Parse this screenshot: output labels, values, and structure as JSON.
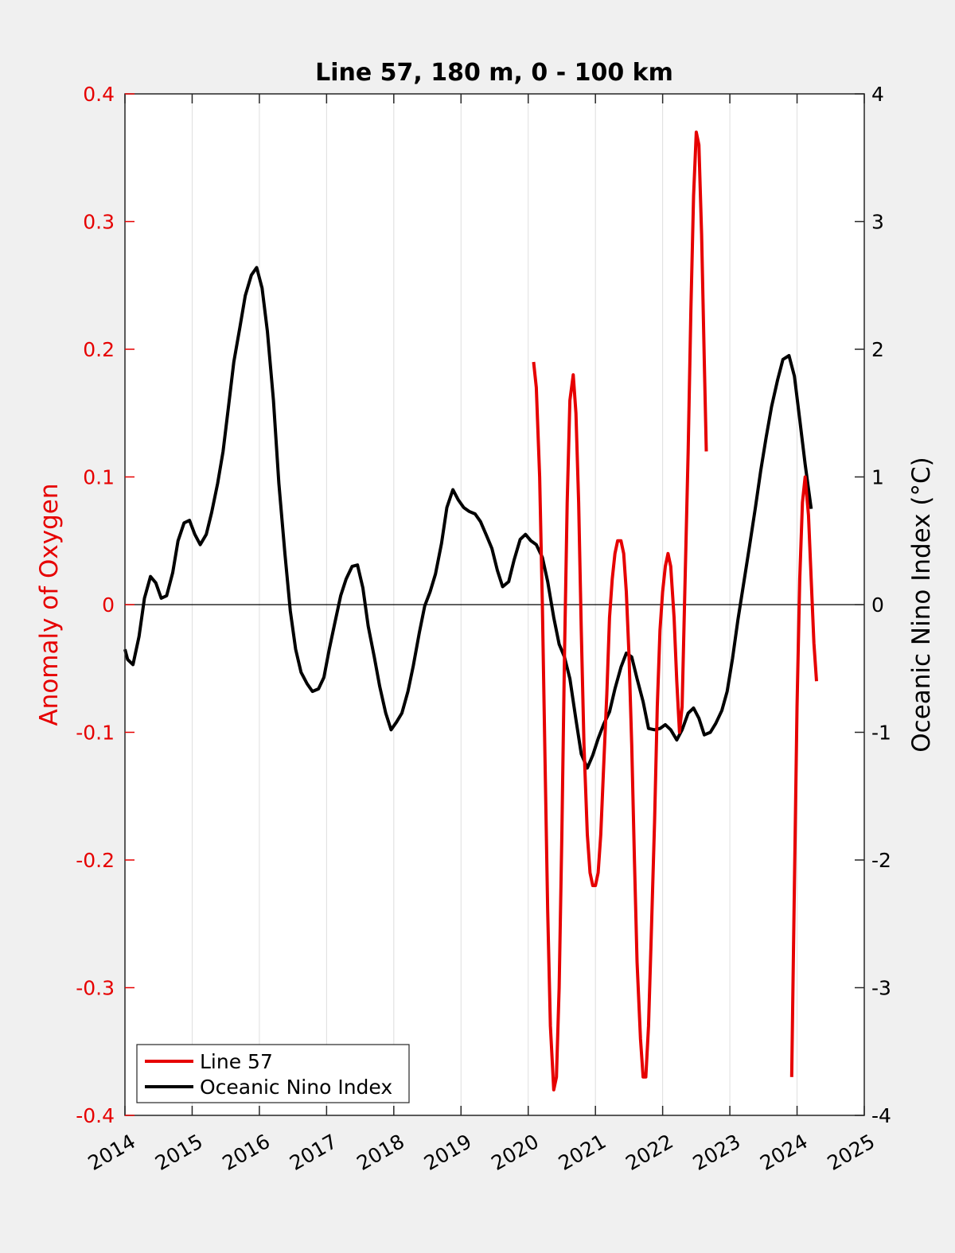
{
  "chart_data": {
    "type": "line",
    "title": "Line 57, 180 m, 0 - 100 km",
    "xlabel": "",
    "xlim": [
      2014,
      2025
    ],
    "x_ticks": [
      "2014",
      "2015",
      "2016",
      "2017",
      "2018",
      "2019",
      "2020",
      "2021",
      "2022",
      "2023",
      "2024",
      "2025"
    ],
    "y_left": {
      "label": "Anomaly of Oxygen",
      "range": [
        -0.4,
        0.4
      ],
      "ticks": [
        "-0.4",
        "-0.3",
        "-0.2",
        "-0.1",
        "0",
        "0.1",
        "0.2",
        "0.3",
        "0.4"
      ],
      "color": "#e60000"
    },
    "y_right": {
      "label": "Oceanic Nino Index (°C)",
      "range": [
        -4,
        4
      ],
      "ticks": [
        "-4",
        "-3",
        "-2",
        "-1",
        "0",
        "1",
        "2",
        "3",
        "4"
      ],
      "color": "#000000"
    },
    "grid": "vertical only",
    "zero_line": true,
    "legend": "bottom-left",
    "series": [
      {
        "name": "Line 57",
        "axis": "left",
        "color": "#e60000",
        "segments": [
          [
            [
              2020.08,
              0.19
            ],
            [
              2020.12,
              0.17
            ],
            [
              2020.17,
              0.1
            ],
            [
              2020.21,
              0.0
            ],
            [
              2020.25,
              -0.12
            ],
            [
              2020.29,
              -0.24
            ],
            [
              2020.33,
              -0.33
            ],
            [
              2020.38,
              -0.38
            ],
            [
              2020.42,
              -0.37
            ],
            [
              2020.46,
              -0.3
            ],
            [
              2020.5,
              -0.18
            ],
            [
              2020.54,
              -0.04
            ],
            [
              2020.58,
              0.08
            ],
            [
              2020.62,
              0.16
            ],
            [
              2020.67,
              0.18
            ],
            [
              2020.71,
              0.15
            ],
            [
              2020.75,
              0.08
            ],
            [
              2020.79,
              -0.02
            ],
            [
              2020.83,
              -0.11
            ],
            [
              2020.88,
              -0.18
            ],
            [
              2020.92,
              -0.21
            ],
            [
              2020.96,
              -0.22
            ],
            [
              2021.0,
              -0.22
            ],
            [
              2021.04,
              -0.21
            ],
            [
              2021.08,
              -0.18
            ],
            [
              2021.12,
              -0.13
            ],
            [
              2021.17,
              -0.07
            ],
            [
              2021.21,
              -0.01
            ],
            [
              2021.25,
              0.02
            ],
            [
              2021.29,
              0.04
            ],
            [
              2021.33,
              0.05
            ],
            [
              2021.38,
              0.05
            ],
            [
              2021.42,
              0.04
            ],
            [
              2021.46,
              0.01
            ],
            [
              2021.5,
              -0.04
            ],
            [
              2021.54,
              -0.11
            ],
            [
              2021.58,
              -0.2
            ],
            [
              2021.62,
              -0.28
            ],
            [
              2021.67,
              -0.34
            ],
            [
              2021.71,
              -0.37
            ],
            [
              2021.75,
              -0.37
            ],
            [
              2021.79,
              -0.33
            ],
            [
              2021.83,
              -0.26
            ],
            [
              2021.88,
              -0.17
            ],
            [
              2021.92,
              -0.08
            ],
            [
              2021.96,
              -0.02
            ],
            [
              2022.0,
              0.01
            ],
            [
              2022.04,
              0.03
            ],
            [
              2022.08,
              0.04
            ],
            [
              2022.12,
              0.03
            ],
            [
              2022.17,
              -0.01
            ],
            [
              2022.21,
              -0.06
            ],
            [
              2022.25,
              -0.1
            ],
            [
              2022.29,
              -0.08
            ],
            [
              2022.33,
              0.01
            ],
            [
              2022.38,
              0.12
            ],
            [
              2022.42,
              0.23
            ],
            [
              2022.46,
              0.32
            ],
            [
              2022.5,
              0.37
            ],
            [
              2022.54,
              0.36
            ],
            [
              2022.58,
              0.29
            ],
            [
              2022.62,
              0.19
            ],
            [
              2022.65,
              0.12
            ]
          ],
          [
            [
              2023.92,
              -0.37
            ],
            [
              2023.96,
              -0.22
            ],
            [
              2024.0,
              -0.08
            ],
            [
              2024.04,
              0.02
            ],
            [
              2024.08,
              0.08
            ],
            [
              2024.12,
              0.1
            ],
            [
              2024.17,
              0.07
            ],
            [
              2024.21,
              0.02
            ],
            [
              2024.25,
              -0.03
            ],
            [
              2024.29,
              -0.06
            ]
          ]
        ]
      },
      {
        "name": "Oceanic Nino Index",
        "axis": "right",
        "color": "#000000",
        "points": [
          [
            2014.0,
            -0.35
          ],
          [
            2014.04,
            -0.43
          ],
          [
            2014.12,
            -0.47
          ],
          [
            2014.21,
            -0.25
          ],
          [
            2014.29,
            0.05
          ],
          [
            2014.38,
            0.22
          ],
          [
            2014.46,
            0.17
          ],
          [
            2014.54,
            0.05
          ],
          [
            2014.62,
            0.07
          ],
          [
            2014.71,
            0.25
          ],
          [
            2014.79,
            0.5
          ],
          [
            2014.88,
            0.64
          ],
          [
            2014.96,
            0.66
          ],
          [
            2015.04,
            0.55
          ],
          [
            2015.12,
            0.47
          ],
          [
            2015.21,
            0.55
          ],
          [
            2015.29,
            0.72
          ],
          [
            2015.38,
            0.95
          ],
          [
            2015.46,
            1.2
          ],
          [
            2015.54,
            1.55
          ],
          [
            2015.62,
            1.9
          ],
          [
            2015.71,
            2.17
          ],
          [
            2015.79,
            2.42
          ],
          [
            2015.88,
            2.58
          ],
          [
            2015.96,
            2.64
          ],
          [
            2016.04,
            2.48
          ],
          [
            2016.12,
            2.14
          ],
          [
            2016.21,
            1.6
          ],
          [
            2016.29,
            0.95
          ],
          [
            2016.38,
            0.4
          ],
          [
            2016.46,
            -0.05
          ],
          [
            2016.54,
            -0.35
          ],
          [
            2016.62,
            -0.53
          ],
          [
            2016.71,
            -0.62
          ],
          [
            2016.79,
            -0.68
          ],
          [
            2016.88,
            -0.66
          ],
          [
            2016.96,
            -0.57
          ],
          [
            2017.04,
            -0.35
          ],
          [
            2017.12,
            -0.15
          ],
          [
            2017.21,
            0.07
          ],
          [
            2017.29,
            0.2
          ],
          [
            2017.38,
            0.3
          ],
          [
            2017.46,
            0.31
          ],
          [
            2017.54,
            0.13
          ],
          [
            2017.62,
            -0.17
          ],
          [
            2017.71,
            -0.41
          ],
          [
            2017.79,
            -0.64
          ],
          [
            2017.88,
            -0.85
          ],
          [
            2017.96,
            -0.98
          ],
          [
            2018.04,
            -0.92
          ],
          [
            2018.12,
            -0.85
          ],
          [
            2018.21,
            -0.68
          ],
          [
            2018.29,
            -0.48
          ],
          [
            2018.38,
            -0.22
          ],
          [
            2018.46,
            -0.01
          ],
          [
            2018.54,
            0.1
          ],
          [
            2018.62,
            0.24
          ],
          [
            2018.71,
            0.48
          ],
          [
            2018.79,
            0.76
          ],
          [
            2018.88,
            0.9
          ],
          [
            2018.96,
            0.82
          ],
          [
            2019.04,
            0.76
          ],
          [
            2019.12,
            0.73
          ],
          [
            2019.21,
            0.71
          ],
          [
            2019.29,
            0.65
          ],
          [
            2019.38,
            0.54
          ],
          [
            2019.46,
            0.44
          ],
          [
            2019.54,
            0.27
          ],
          [
            2019.62,
            0.14
          ],
          [
            2019.71,
            0.18
          ],
          [
            2019.79,
            0.35
          ],
          [
            2019.88,
            0.51
          ],
          [
            2019.96,
            0.55
          ],
          [
            2020.04,
            0.5
          ],
          [
            2020.12,
            0.47
          ],
          [
            2020.21,
            0.37
          ],
          [
            2020.29,
            0.18
          ],
          [
            2020.38,
            -0.1
          ],
          [
            2020.46,
            -0.31
          ],
          [
            2020.54,
            -0.41
          ],
          [
            2020.62,
            -0.58
          ],
          [
            2020.71,
            -0.9
          ],
          [
            2020.79,
            -1.17
          ],
          [
            2020.88,
            -1.28
          ],
          [
            2020.96,
            -1.18
          ],
          [
            2021.04,
            -1.05
          ],
          [
            2021.12,
            -0.94
          ],
          [
            2021.21,
            -0.84
          ],
          [
            2021.29,
            -0.66
          ],
          [
            2021.38,
            -0.49
          ],
          [
            2021.46,
            -0.38
          ],
          [
            2021.54,
            -0.41
          ],
          [
            2021.62,
            -0.58
          ],
          [
            2021.71,
            -0.76
          ],
          [
            2021.79,
            -0.97
          ],
          [
            2021.88,
            -0.98
          ],
          [
            2021.96,
            -0.97
          ],
          [
            2022.04,
            -0.94
          ],
          [
            2022.12,
            -0.98
          ],
          [
            2022.21,
            -1.06
          ],
          [
            2022.29,
            -0.98
          ],
          [
            2022.38,
            -0.85
          ],
          [
            2022.46,
            -0.81
          ],
          [
            2022.54,
            -0.89
          ],
          [
            2022.62,
            -1.02
          ],
          [
            2022.71,
            -1.0
          ],
          [
            2022.79,
            -0.93
          ],
          [
            2022.88,
            -0.83
          ],
          [
            2022.96,
            -0.68
          ],
          [
            2023.04,
            -0.42
          ],
          [
            2023.12,
            -0.12
          ],
          [
            2023.21,
            0.18
          ],
          [
            2023.29,
            0.45
          ],
          [
            2023.38,
            0.76
          ],
          [
            2023.46,
            1.05
          ],
          [
            2023.54,
            1.31
          ],
          [
            2023.62,
            1.55
          ],
          [
            2023.71,
            1.76
          ],
          [
            2023.79,
            1.92
          ],
          [
            2023.88,
            1.95
          ],
          [
            2023.96,
            1.79
          ],
          [
            2024.04,
            1.45
          ],
          [
            2024.12,
            1.1
          ],
          [
            2024.21,
            0.75
          ]
        ]
      }
    ]
  }
}
